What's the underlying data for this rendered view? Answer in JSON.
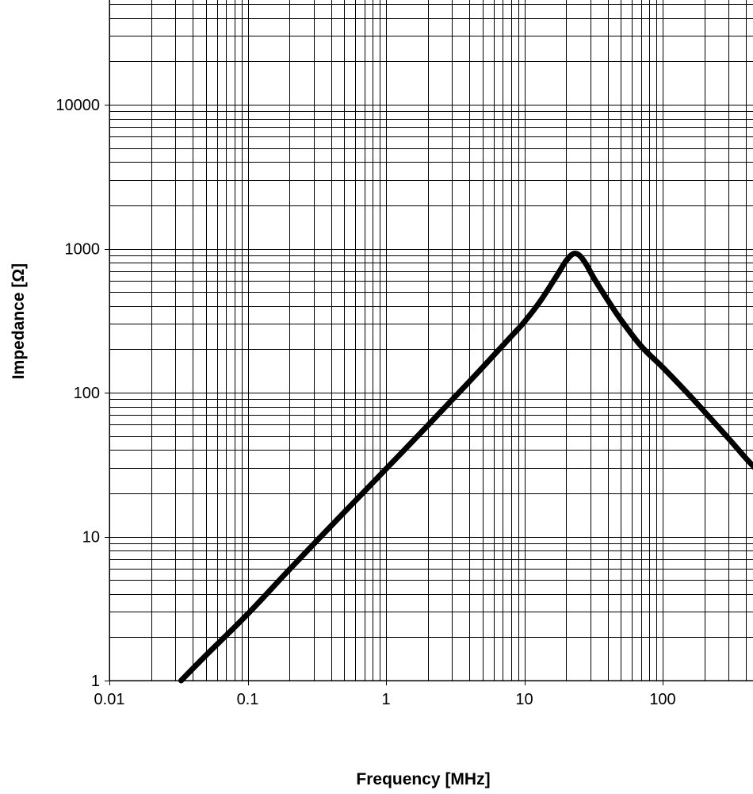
{
  "chart_data": {
    "type": "line",
    "title": "",
    "xlabel": "Frequency [MHz]",
    "ylabel": "Impedance [Ω]",
    "x_scale": "log",
    "y_scale": "log",
    "xlim": [
      0.01,
      1000
    ],
    "ylim": [
      1,
      50000
    ],
    "x_ticks": [
      {
        "value": 0.01,
        "label": "0.01"
      },
      {
        "value": 0.1,
        "label": "0.1"
      },
      {
        "value": 1,
        "label": "1"
      },
      {
        "value": 10,
        "label": "10"
      },
      {
        "value": 100,
        "label": "100"
      }
    ],
    "y_ticks": [
      {
        "value": 1,
        "label": "1"
      },
      {
        "value": 10,
        "label": "10"
      },
      {
        "value": 100,
        "label": "100"
      },
      {
        "value": 1000,
        "label": "1000"
      },
      {
        "value": 10000,
        "label": "10000"
      }
    ],
    "grid": true,
    "legend": "none",
    "series": [
      {
        "color": "#000000",
        "x": [
          0.033,
          0.05,
          0.1,
          0.2,
          0.5,
          1,
          2,
          3.5,
          5,
          8,
          10,
          13,
          17,
          20,
          22.5,
          25,
          28,
          32,
          40,
          50,
          70,
          100,
          150,
          200,
          300,
          400,
          480
        ],
        "y": [
          1,
          1.5,
          2.9,
          5.9,
          14.8,
          29.5,
          59,
          104,
          150,
          245,
          310,
          430,
          640,
          820,
          920,
          900,
          780,
          620,
          440,
          320,
          210,
          150,
          100,
          74,
          48,
          35,
          29
        ]
      }
    ]
  }
}
